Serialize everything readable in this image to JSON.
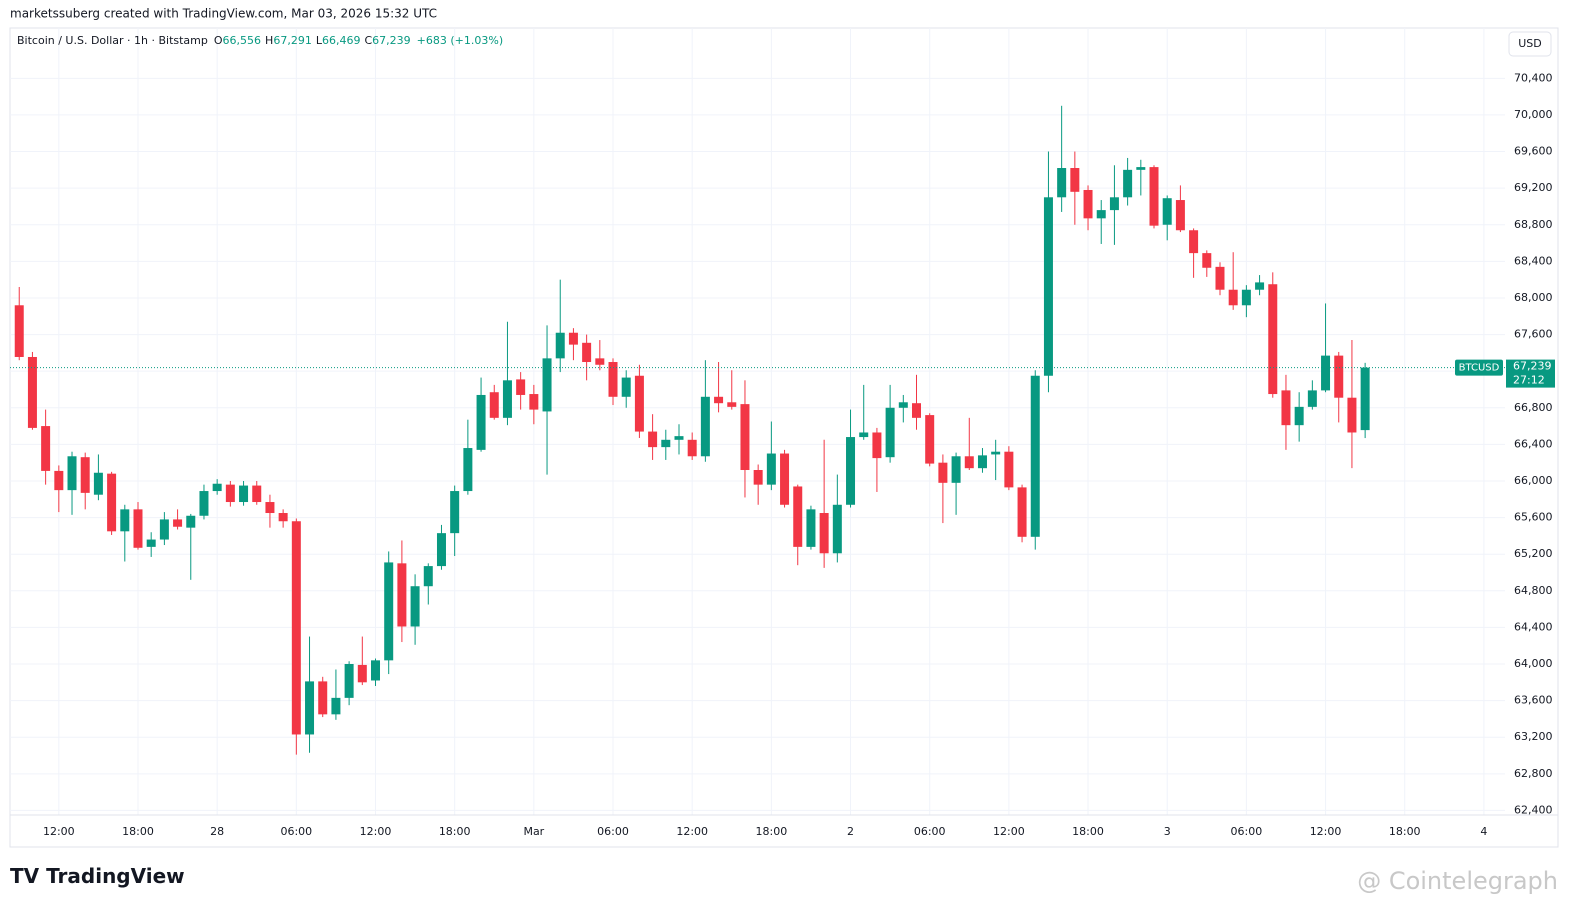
{
  "chart_data": {
    "type": "candlestick",
    "caption": "marketssuberg created with TradingView.com, Mar 03, 2026 15:32 UTC",
    "title": "Bitcoin / U.S. Dollar · 1h · Bitstamp",
    "legend": {
      "o_label": "O",
      "o": "66,556",
      "h_label": "H",
      "h": "67,291",
      "l_label": "L",
      "l": "66,469",
      "c_label": "C",
      "c": "67,239",
      "change": "+683 (+1.03%)"
    },
    "currency": "USD",
    "symbol": "BTCUSD",
    "current_price": {
      "value": 67239,
      "label": "67,239"
    },
    "countdown": "27:12",
    "brand": "TradingView",
    "watermark": "@ Cointelegraph",
    "up_color": "#089981",
    "down_color": "#f23645",
    "x": [
      0,
      1,
      2,
      3,
      4,
      5,
      6,
      7,
      8,
      9,
      10,
      11,
      12,
      13,
      14,
      15,
      16,
      17,
      18,
      19,
      20,
      21,
      22,
      23,
      24,
      25,
      26,
      27,
      28,
      29,
      30,
      31,
      32,
      33,
      34,
      35,
      36,
      37,
      38,
      39,
      40,
      41,
      42,
      43,
      44,
      45,
      46,
      47,
      48,
      49,
      50,
      51,
      52,
      53,
      54,
      55,
      56,
      57,
      58,
      59,
      60,
      61,
      62,
      63,
      64,
      65,
      66,
      67,
      68,
      69,
      70,
      71,
      72,
      73,
      74,
      75,
      76,
      77,
      78,
      79,
      80,
      81,
      82,
      83,
      84,
      85,
      86,
      87,
      88,
      89,
      90,
      91,
      92,
      93,
      94,
      95,
      96,
      97,
      98,
      99,
      100,
      101,
      102
    ],
    "open": [
      67920,
      67355,
      66600,
      66110,
      65900,
      66260,
      65850,
      66080,
      65450,
      65690,
      65280,
      65360,
      65580,
      65490,
      65620,
      65890,
      65960,
      65770,
      65950,
      65770,
      65650,
      65560,
      63230,
      63810,
      63450,
      63630,
      63990,
      63820,
      64040,
      65100,
      64410,
      64850,
      65070,
      65430,
      65890,
      66340,
      66970,
      66690,
      67110,
      66950,
      66760,
      67340,
      67620,
      67510,
      67340,
      67300,
      66920,
      67150,
      66540,
      66370,
      66450,
      66450,
      66270,
      66920,
      66860,
      66840,
      66120,
      65960,
      66300,
      65940,
      65280,
      65650,
      65210,
      65740,
      66480,
      66530,
      66260,
      66800,
      66850,
      66720,
      66200,
      65980,
      66270,
      66140,
      66290,
      66320,
      65930,
      65390,
      67150,
      69100,
      69420,
      69180,
      68870,
      68960,
      69100,
      69400,
      69430,
      68800,
      69070,
      68740,
      68490,
      68340,
      68090,
      67920,
      68090,
      68150,
      66990,
      66610,
      66810,
      66990,
      67370,
      66910,
      66556
    ],
    "high": [
      68120,
      67410,
      66780,
      66170,
      66320,
      66310,
      66290,
      66100,
      65740,
      65770,
      65440,
      65660,
      65690,
      65640,
      65960,
      66020,
      66000,
      66000,
      66000,
      65850,
      65690,
      65590,
      64300,
      63860,
      63940,
      64030,
      64300,
      64060,
      65230,
      65350,
      64980,
      65100,
      65520,
      65950,
      66670,
      67130,
      67050,
      67740,
      67190,
      67050,
      67700,
      68200,
      67670,
      67600,
      67540,
      67340,
      67210,
      67270,
      66730,
      66560,
      66620,
      66530,
      67320,
      67300,
      67210,
      67100,
      66180,
      66650,
      66340,
      65960,
      65730,
      66450,
      66070,
      66780,
      67050,
      66580,
      67050,
      66940,
      67160,
      66740,
      66290,
      66310,
      66690,
      66360,
      66450,
      66380,
      65960,
      67210,
      69600,
      70100,
      69600,
      69230,
      69070,
      69450,
      69530,
      69510,
      69450,
      69120,
      69230,
      68760,
      68520,
      68390,
      68500,
      68140,
      68250,
      68280,
      67160,
      66970,
      67100,
      67940,
      67410,
      67540,
      67291
    ],
    "low": [
      67320,
      66560,
      65960,
      65660,
      65630,
      65690,
      65790,
      65410,
      65120,
      65250,
      65170,
      65300,
      65470,
      64920,
      65580,
      65850,
      65720,
      65730,
      65740,
      65490,
      65490,
      63010,
      63030,
      63420,
      63390,
      63550,
      63770,
      63760,
      63890,
      64240,
      64210,
      64650,
      65030,
      65180,
      65850,
      66320,
      66670,
      66610,
      66780,
      66620,
      66070,
      67190,
      67320,
      67100,
      67210,
      66830,
      66800,
      66470,
      66230,
      66230,
      66290,
      66230,
      66210,
      66750,
      66780,
      65820,
      65740,
      65900,
      65710,
      65080,
      65250,
      65050,
      65110,
      65710,
      66450,
      65880,
      66200,
      66640,
      66560,
      66160,
      65540,
      65630,
      66120,
      66090,
      66010,
      65900,
      65330,
      65250,
      66970,
      68940,
      68800,
      68740,
      68590,
      68580,
      69010,
      69120,
      68760,
      68630,
      68720,
      68220,
      68230,
      68030,
      67870,
      67790,
      68030,
      66910,
      66340,
      66430,
      66780,
      66970,
      66640,
      66140,
      66469
    ],
    "close": [
      67355,
      66580,
      66110,
      65900,
      66270,
      65870,
      66090,
      65450,
      65690,
      65270,
      65360,
      65580,
      65500,
      65620,
      65890,
      65970,
      65770,
      65950,
      65770,
      65650,
      65560,
      63230,
      63810,
      63450,
      63630,
      64000,
      63800,
      64040,
      65110,
      64410,
      64850,
      65070,
      65430,
      65890,
      66360,
      66940,
      66690,
      67100,
      66940,
      66780,
      67340,
      67620,
      67490,
      67300,
      67270,
      66920,
      67130,
      66540,
      66370,
      66450,
      66490,
      66270,
      66920,
      66850,
      66810,
      66120,
      65960,
      66300,
      65740,
      65280,
      65690,
      65210,
      65740,
      66480,
      66530,
      66250,
      66800,
      66860,
      66690,
      66190,
      65980,
      66270,
      66140,
      66280,
      66320,
      65930,
      65390,
      67150,
      69100,
      69420,
      69160,
      68870,
      68960,
      69100,
      69400,
      69430,
      68790,
      69090,
      68740,
      68490,
      68330,
      68090,
      67920,
      68090,
      68170,
      66950,
      66610,
      66810,
      66990,
      67370,
      66910,
      66530,
      67239
    ],
    "xlim": [
      -0.7,
      112.6
    ],
    "xticks": [
      {
        "value": 3,
        "label": "12:00"
      },
      {
        "value": 9,
        "label": "18:00"
      },
      {
        "value": 15,
        "label": "28"
      },
      {
        "value": 21,
        "label": "06:00"
      },
      {
        "value": 27,
        "label": "12:00"
      },
      {
        "value": 33,
        "label": "18:00"
      },
      {
        "value": 39,
        "label": "Mar"
      },
      {
        "value": 45,
        "label": "06:00"
      },
      {
        "value": 51,
        "label": "12:00"
      },
      {
        "value": 57,
        "label": "18:00"
      },
      {
        "value": 63,
        "label": "2"
      },
      {
        "value": 69,
        "label": "06:00"
      },
      {
        "value": 75,
        "label": "12:00"
      },
      {
        "value": 81,
        "label": "18:00"
      },
      {
        "value": 87,
        "label": "3"
      },
      {
        "value": 93,
        "label": "06:00"
      },
      {
        "value": 99,
        "label": "12:00"
      },
      {
        "value": 105,
        "label": "18:00"
      },
      {
        "value": 111,
        "label": "4"
      }
    ],
    "ylim": [
      62350,
      70950
    ],
    "yticks": [
      {
        "value": 62400,
        "label": "62,400"
      },
      {
        "value": 62800,
        "label": "62,800"
      },
      {
        "value": 63200,
        "label": "63,200"
      },
      {
        "value": 63600,
        "label": "63,600"
      },
      {
        "value": 64000,
        "label": "64,000"
      },
      {
        "value": 64400,
        "label": "64,400"
      },
      {
        "value": 64800,
        "label": "64,800"
      },
      {
        "value": 65200,
        "label": "65,200"
      },
      {
        "value": 65600,
        "label": "65,600"
      },
      {
        "value": 66000,
        "label": "66,000"
      },
      {
        "value": 66400,
        "label": "66,400"
      },
      {
        "value": 66800,
        "label": "66,800"
      },
      {
        "value": 67200,
        "label": "67,200"
      },
      {
        "value": 67600,
        "label": "67,600"
      },
      {
        "value": 68000,
        "label": "68,000"
      },
      {
        "value": 68400,
        "label": "68,400"
      },
      {
        "value": 68800,
        "label": "68,800"
      },
      {
        "value": 69200,
        "label": "69,200"
      },
      {
        "value": 69600,
        "label": "69,600"
      },
      {
        "value": 70000,
        "label": "70,000"
      },
      {
        "value": 70400,
        "label": "70,400"
      }
    ],
    "grid": true
  }
}
